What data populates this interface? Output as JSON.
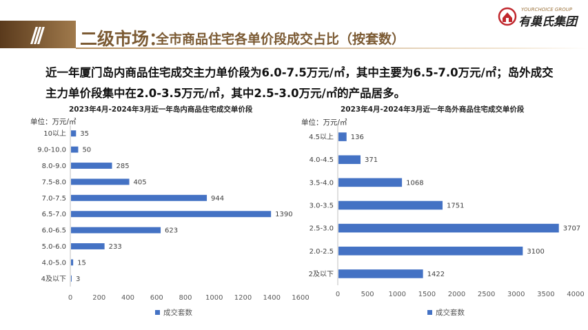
{
  "header": {
    "slashes": "///",
    "title_main": "二级市场：",
    "title_sub": "全市商品住宅各单价段成交占比（按套数）"
  },
  "logo": {
    "tagline": "YOURCHOICE GROUP",
    "name": "有巢氏集团",
    "accent_color": "#c0272d"
  },
  "summary": "近一年厦门岛内商品住宅成交主力单价段为6.0-7.5万元/㎡，其中主要为6.5-7.0万元/㎡；岛外成交主力单价段集中在2.0-3.5万元/㎡，其中2.5-3.0万元/㎡的产品居多。",
  "colors": {
    "bar": "#4472c4",
    "brand": "#7b5a33"
  },
  "chart_data": [
    {
      "type": "bar",
      "orientation": "horizontal",
      "title": "2023年4月-2024年3月近一年岛内商品住宅成交单价段",
      "unit_label": "单位：万元/㎡",
      "categories": [
        "10以上",
        "9.0-10.0",
        "8.0-9.0",
        "7.5-8.0",
        "7.0-7.5",
        "6.5-7.0",
        "6.0-6.5",
        "5.0-6.0",
        "4.0-5.0",
        "4及以下"
      ],
      "series": [
        {
          "name": "成交套数",
          "values": [
            35,
            50,
            285,
            405,
            944,
            1390,
            623,
            233,
            15,
            3
          ]
        }
      ],
      "xlim": [
        0,
        1600
      ],
      "xticks": [
        0,
        200,
        400,
        600,
        800,
        1000,
        1200,
        1400,
        1600
      ],
      "legend_position": "bottom",
      "grid": false
    },
    {
      "type": "bar",
      "orientation": "horizontal",
      "title": "2023年4月-2024年3月近一年岛外商品住宅成交单价段",
      "unit_label": "单位：万元/㎡",
      "categories": [
        "4.5以上",
        "4.0-4.5",
        "3.5-4.0",
        "3.0-3.5",
        "2.5-3.0",
        "2.0-2.5",
        "2及以下"
      ],
      "series": [
        {
          "name": "成交套数",
          "values": [
            136,
            371,
            1068,
            1751,
            3707,
            3100,
            1422
          ]
        }
      ],
      "xlim": [
        0,
        4000
      ],
      "xticks": [
        0,
        500,
        1000,
        1500,
        2000,
        2500,
        3000,
        3500,
        4000
      ],
      "legend_position": "bottom",
      "grid": false
    }
  ]
}
